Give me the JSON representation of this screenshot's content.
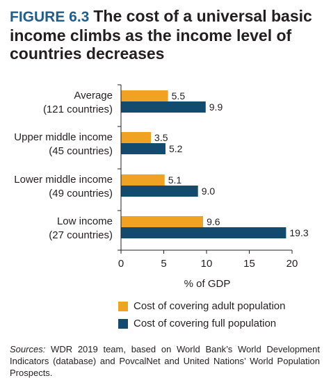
{
  "figure": {
    "label": "FIGURE 6.3",
    "title": "The cost of a universal basic income climbs as the income level of countries decreases"
  },
  "colors": {
    "adult": "#f0a323",
    "full": "#124b6e",
    "axis": "#231f20"
  },
  "chart_data": {
    "type": "bar",
    "orientation": "horizontal",
    "categories": [
      [
        "Average",
        "(121 countries)"
      ],
      [
        "Upper middle income",
        "(45 countries)"
      ],
      [
        "Lower middle income",
        "(49 countries)"
      ],
      [
        "Low income",
        "(27 countries)"
      ]
    ],
    "series": [
      {
        "name": "Cost of covering adult population",
        "values": [
          5.5,
          3.5,
          5.1,
          9.6
        ],
        "labels": [
          "5.5",
          "3.5",
          "5.1",
          "9.6"
        ]
      },
      {
        "name": "Cost of covering full population",
        "values": [
          9.9,
          5.2,
          9.0,
          19.3
        ],
        "labels": [
          "9.9",
          "5.2",
          "9.0",
          "19.3"
        ]
      }
    ],
    "xlabel": "% of GDP",
    "xticks": [
      0,
      5,
      10,
      15,
      20
    ],
    "xlim": [
      0,
      20
    ],
    "legend_position": "bottom",
    "grid": false
  },
  "sources": {
    "label": "Sources:",
    "text": "WDR 2019 team, based on World Bank’s World Development Indicators (database) and PovcalNet and United Nations’ World Population Prospects."
  }
}
